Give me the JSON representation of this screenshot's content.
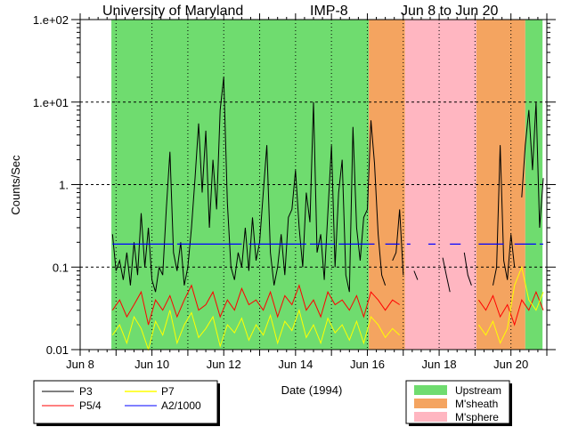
{
  "chart_data": {
    "type": "line",
    "title_parts": [
      "University of Maryland",
      "IMP-8",
      "Jun 8 to Jun 20"
    ],
    "xlabel": "Date (1994)",
    "ylabel": "Counts/Sec",
    "x_unit": "day of June 1994",
    "xlim": [
      8,
      21
    ],
    "ylim": [
      0.01,
      100
    ],
    "yscale": "log",
    "x_ticks": [
      {
        "day": 8,
        "label": "Jun 8"
      },
      {
        "day": 10,
        "label": "Jun 10"
      },
      {
        "day": 12,
        "label": "Jun 12"
      },
      {
        "day": 14,
        "label": "Jun 14"
      },
      {
        "day": 16,
        "label": "Jun 16"
      },
      {
        "day": 18,
        "label": "Jun 18"
      },
      {
        "day": 20,
        "label": "Jun 20"
      }
    ],
    "y_ticks": [
      {
        "value": 100,
        "label": "1.e+02"
      },
      {
        "value": 10,
        "label": "1.e+01"
      },
      {
        "value": 1,
        "label": "1."
      },
      {
        "value": 0.1,
        "label": "0.1"
      },
      {
        "value": 0.01,
        "label": "0.01"
      }
    ],
    "grid": "dotted, daily vertical and per-decade horizontal",
    "regions": [
      {
        "label": "Upstream",
        "from": 8.87,
        "to": 16.04,
        "color": "#6fdc6f"
      },
      {
        "label": "M'sheath",
        "from": 16.04,
        "to": 17.05,
        "color": "#f4a460"
      },
      {
        "label": "M'sphere",
        "from": 17.05,
        "to": 19.04,
        "color": "#ffb6c1"
      },
      {
        "label": "M'sheath",
        "from": 19.04,
        "to": 20.4,
        "color": "#f4a460"
      },
      {
        "label": "Upstream",
        "from": 20.4,
        "to": 20.88,
        "color": "#6fdc6f"
      }
    ],
    "region_legend": [
      {
        "label": "Upstream",
        "color": "#6fdc6f"
      },
      {
        "label": "M'sheath",
        "color": "#f4a460"
      },
      {
        "label": "M'sphere",
        "color": "#ffb6c1"
      }
    ],
    "series": [
      {
        "name": "P3",
        "color": "#000000",
        "x_start": 8.9,
        "x_step": 0.1,
        "values": [
          0.25,
          0.09,
          0.12,
          0.07,
          0.15,
          0.06,
          0.2,
          0.08,
          0.45,
          0.1,
          0.3,
          0.07,
          0.05,
          0.1,
          0.08,
          0.5,
          2.5,
          0.15,
          0.09,
          0.2,
          0.06,
          0.1,
          0.3,
          1.2,
          5.5,
          0.8,
          4.5,
          0.3,
          2,
          0.5,
          8,
          20,
          0.6,
          0.1,
          0.07,
          0.15,
          0.1,
          0.3,
          0.09,
          0.4,
          0.12,
          0.2,
          0.8,
          3,
          0.15,
          0.06,
          0.1,
          0.25,
          0.08,
          0.4,
          0.5,
          1.5,
          0.3,
          0.1,
          0.8,
          0.35,
          10,
          0.15,
          0.25,
          0.07,
          0.45,
          3,
          0.1,
          0.8,
          2,
          0.08,
          0.05,
          5,
          0.3,
          0.12,
          0.4,
          0.5,
          6,
          1.8,
          0.25,
          0.08,
          0.06,
          null,
          0.12,
          0.15,
          0.5,
          0.08,
          null,
          null,
          0.09,
          0.07,
          null,
          null,
          null,
          null,
          null,
          null,
          0.13,
          0.08,
          0.05,
          null,
          null,
          null,
          0.15,
          0.08,
          0.06,
          null,
          null,
          null,
          null,
          null,
          0.06,
          0.1,
          3,
          0.12,
          0.07,
          0.25,
          0.1,
          null,
          0.7,
          3,
          8,
          1.5,
          10,
          0.3,
          1.2
        ]
      },
      {
        "name": "P5/4",
        "color": "#ff0000",
        "x_start": 8.9,
        "x_step": 0.2,
        "values": [
          0.03,
          0.04,
          0.025,
          0.035,
          0.05,
          0.02,
          0.04,
          0.03,
          0.045,
          0.025,
          0.04,
          0.06,
          0.03,
          0.035,
          0.05,
          0.025,
          0.04,
          0.03,
          0.055,
          0.035,
          0.04,
          0.03,
          0.05,
          0.025,
          0.045,
          0.035,
          0.06,
          0.03,
          0.04,
          0.025,
          0.05,
          0.035,
          0.04,
          0.03,
          0.045,
          0.025,
          0.05,
          0.04,
          0.03,
          0.04,
          0.035,
          null,
          0.04,
          null,
          null,
          null,
          null,
          0.03,
          null,
          0.04,
          null,
          0.04,
          0.03,
          0.045,
          0.025,
          0.035,
          0.02,
          0.04,
          0.03,
          0.05,
          0.03
        ]
      },
      {
        "name": "P7",
        "color": "#ffff00",
        "x_start": 8.9,
        "x_step": 0.2,
        "values": [
          0.015,
          0.02,
          0.012,
          0.025,
          0.018,
          0.01,
          0.022,
          0.015,
          0.03,
          0.012,
          0.02,
          0.028,
          0.014,
          0.018,
          0.025,
          0.011,
          0.02,
          0.016,
          0.024,
          0.013,
          0.02,
          0.015,
          0.026,
          0.012,
          0.022,
          0.017,
          0.03,
          0.014,
          0.02,
          0.012,
          0.024,
          0.016,
          0.02,
          0.013,
          0.022,
          0.012,
          0.025,
          0.02,
          0.014,
          0.018,
          0.015,
          null,
          0.018,
          null,
          null,
          null,
          null,
          0.02,
          null,
          0.018,
          null,
          0.02,
          0.015,
          0.022,
          0.012,
          0.018,
          0.06,
          0.1,
          0.04,
          0.03,
          0.05
        ]
      },
      {
        "name": "A2/1000",
        "color": "#0000ff",
        "level": 0.19,
        "segments": [
          [
            8.9,
            10.6
          ],
          [
            10.7,
            12.5
          ],
          [
            12.7,
            14.3
          ],
          [
            14.4,
            15.1
          ],
          [
            15.2,
            16.2
          ],
          [
            16.5,
            16.9
          ],
          [
            17.1,
            17.2
          ],
          [
            17.7,
            17.9
          ],
          [
            18.3,
            18.6
          ],
          [
            19.1,
            19.8
          ],
          [
            20.1,
            20.7
          ],
          [
            20.8,
            20.9
          ]
        ]
      }
    ],
    "legend": [
      {
        "label": "P3",
        "color": "#000000"
      },
      {
        "label": "P7",
        "color": "#ffff00"
      },
      {
        "label": "P5/4",
        "color": "#ff0000"
      },
      {
        "label": "A2/1000",
        "color": "#0000ff"
      }
    ]
  }
}
